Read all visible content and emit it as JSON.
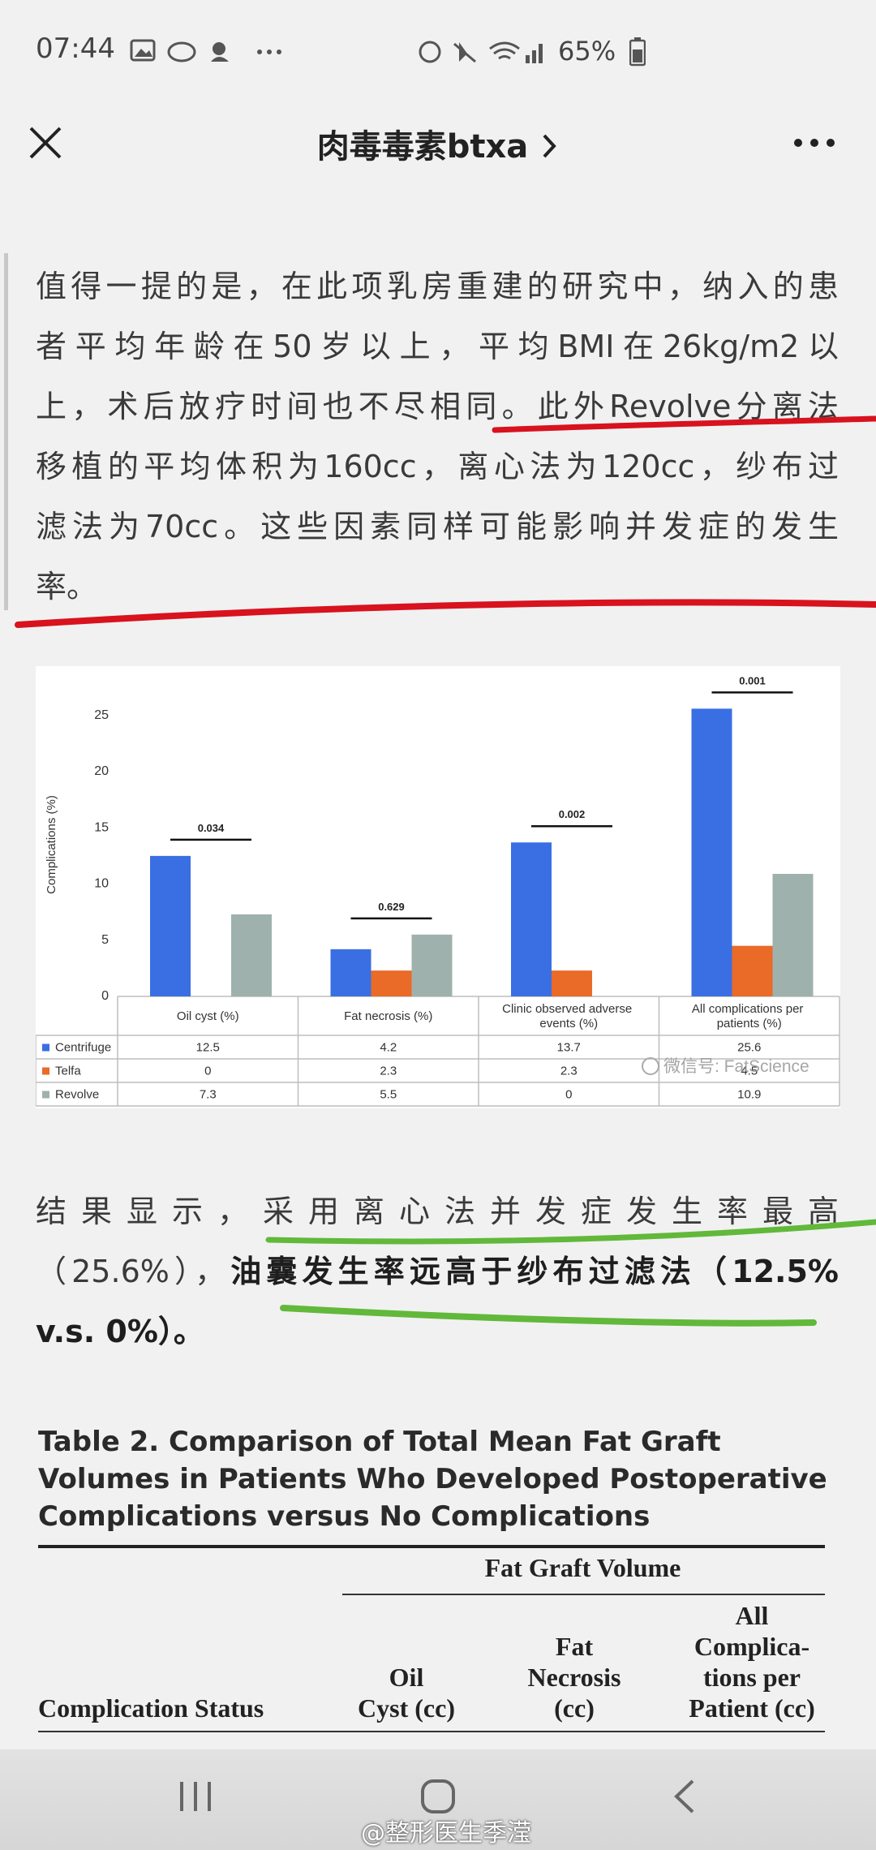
{
  "status_bar": {
    "time": "07:44",
    "battery": "65%"
  },
  "header": {
    "title": "肉毒毒素btxa"
  },
  "paragraph_1": [
    "值得一提的是，在此项乳房重建的研究中，纳入的患",
    "者平均年龄在50岁以上，平均BMI在26kg/m2以",
    "上，术后放疗时间也不尽相同。此外Revolve分离法",
    "移植的平均体积为160cc，离心法为120cc，纱布过",
    "滤法为70cc。这些因素同样可能影响并发症的发生",
    "率。"
  ],
  "chart_data": {
    "type": "bar",
    "ylabel": "Complications (%)",
    "categories": [
      "Oil cyst (%)",
      "Fat necrosis (%)",
      "Clinic observed adverse events (%)",
      "All complications per patients (%)"
    ],
    "series": [
      {
        "name": "Centrifuge",
        "color": "#3a6fe3",
        "values": [
          12.5,
          4.2,
          13.7,
          25.6
        ]
      },
      {
        "name": "Telfa",
        "color": "#ea6a28",
        "values": [
          0,
          2.3,
          2.3,
          4.5
        ]
      },
      {
        "name": "Revolve",
        "color": "#9fb1ad",
        "values": [
          7.3,
          5.5,
          0,
          10.9
        ]
      }
    ],
    "ylim": [
      0,
      27
    ],
    "yticks": [
      0,
      5,
      10,
      15,
      20,
      25
    ],
    "annotations": [
      "0.034",
      "0.629",
      "0.002",
      "0.001"
    ],
    "watermark": "微信号: FatScience"
  },
  "paragraph_2": [
    {
      "text": "结果显示，采用离心法并发症发生率最高",
      "bold": false
    },
    {
      "text": "（25.6%），",
      "bold": false
    },
    {
      "text": "油囊发生率远高于纱布过滤法（12.5%",
      "bold": true
    },
    {
      "text": "v.s. 0%）。",
      "bold": true
    }
  ],
  "table": {
    "title": [
      "Table 2.  Comparison of Total Mean Fat Graft",
      "Volumes in Patients Who Developed Postoperative",
      "Complications versus No Complications"
    ],
    "group_header": "Fat Graft Volume",
    "row_header": "Complication Status",
    "columns": [
      [
        "Oil",
        "Cyst (cc)"
      ],
      [
        "Fat",
        "Necrosis",
        "(cc)"
      ],
      [
        "All",
        "Complica-",
        "tions per",
        "Patient (cc)"
      ]
    ]
  },
  "watermark": "@整形医生季滢"
}
